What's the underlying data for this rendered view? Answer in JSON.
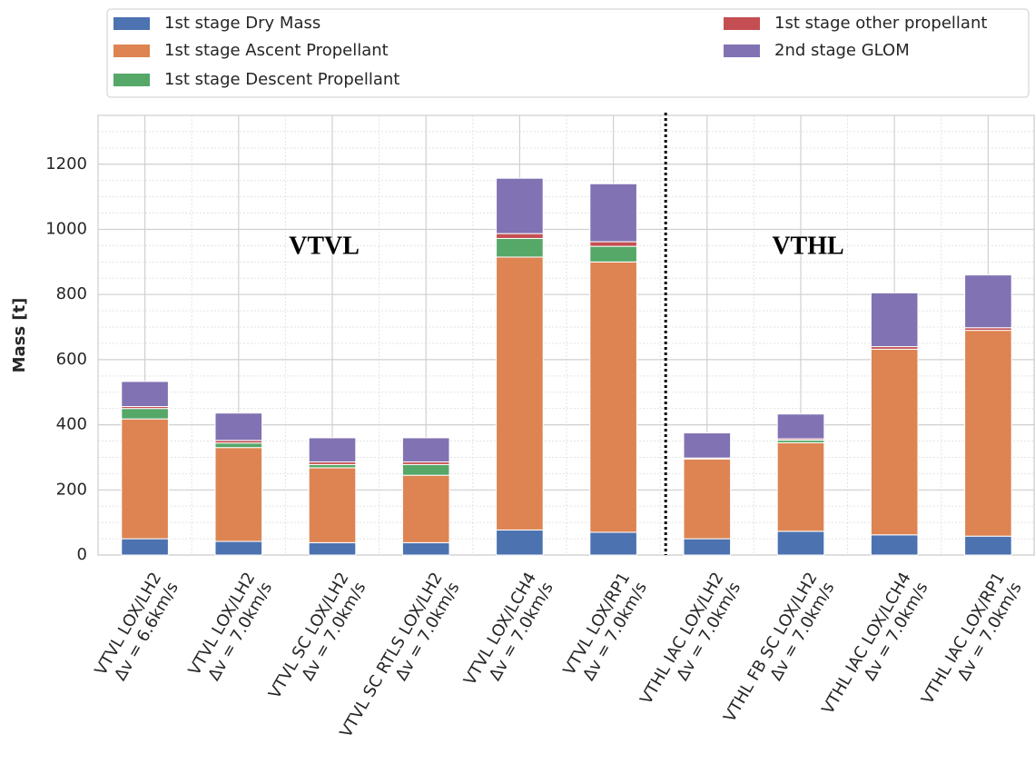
{
  "chart_data": {
    "type": "stacked_bar",
    "y_label": "Mass [t]",
    "categories": [
      [
        "VTVL LOX/LH2",
        "Δv = 6.6km/s"
      ],
      [
        "VTVL LOX/LH2",
        "Δv = 7.0km/s"
      ],
      [
        "VTVL SC LOX/LH2",
        "Δv = 7.0km/s"
      ],
      [
        "VTVL SC RTLS LOX/LH2",
        "Δv = 7.0km/s"
      ],
      [
        "VTVL LOX/LCH4",
        "Δv = 7.0km/s"
      ],
      [
        "VTVL LOX/RP1",
        "Δv = 7.0km/s"
      ],
      [
        "VTHL IAC LOX/LH2",
        "Δv = 7.0km/s"
      ],
      [
        "VTHL FB SC LOX/LH2",
        "Δv = 7.0km/s"
      ],
      [
        "VTHL IAC LOX/LCH4",
        "Δv = 7.0km/s"
      ],
      [
        "VTHL IAC LOX/RP1",
        "Δv = 7.0km/s"
      ]
    ],
    "series": [
      {
        "name": "1st stage Dry Mass",
        "color": "#4c72b0",
        "values": [
          50,
          42,
          38,
          38,
          77,
          70,
          50,
          73,
          62,
          58
        ]
      },
      {
        "name": "1st stage Ascent Propellant",
        "color": "#dd8452",
        "values": [
          368,
          288,
          230,
          207,
          838,
          830,
          245,
          272,
          570,
          632
        ]
      },
      {
        "name": "1st stage Descent Propellant",
        "color": "#55a868",
        "values": [
          32,
          14,
          10,
          33,
          57,
          48,
          0,
          8,
          0,
          0
        ]
      },
      {
        "name": "1st stage other propellant",
        "color": "#c44e52",
        "values": [
          6,
          8,
          8,
          8,
          15,
          14,
          3,
          4,
          8,
          8
        ]
      },
      {
        "name": "2nd stage GLOM",
        "color": "#8172b3",
        "values": [
          77,
          84,
          74,
          74,
          170,
          178,
          77,
          76,
          165,
          162
        ]
      }
    ],
    "annotations": [
      "VTVL",
      "VTHL"
    ],
    "ylim": [
      0,
      1350
    ],
    "yticks": [
      0,
      200,
      400,
      600,
      800,
      1000,
      1200
    ],
    "grid": true,
    "minor_grid": true,
    "legend": "upper center"
  }
}
